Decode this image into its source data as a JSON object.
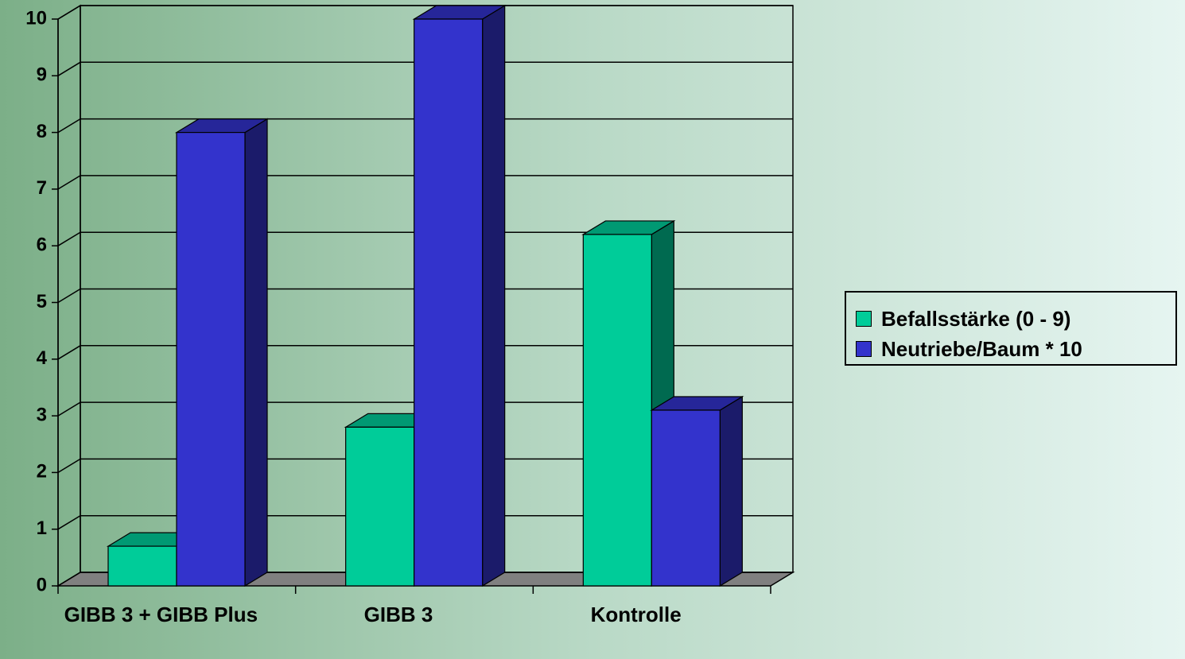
{
  "chart_data": {
    "type": "bar3d",
    "categories": [
      "GIBB 3 + GIBB Plus",
      "GIBB 3",
      "Kontrolle"
    ],
    "series": [
      {
        "name": "Befallsstärke (0 - 9)",
        "color": "#00cc99",
        "values": [
          0.7,
          2.8,
          6.2
        ]
      },
      {
        "name": "Neutriebe/Baum * 10",
        "color": "#3333cc",
        "values": [
          8,
          10,
          3.1
        ]
      }
    ],
    "ylim": [
      0,
      10
    ],
    "yticks": [
      0,
      1,
      2,
      3,
      4,
      5,
      6,
      7,
      8,
      9,
      10
    ],
    "grid": true,
    "legend": "right"
  }
}
